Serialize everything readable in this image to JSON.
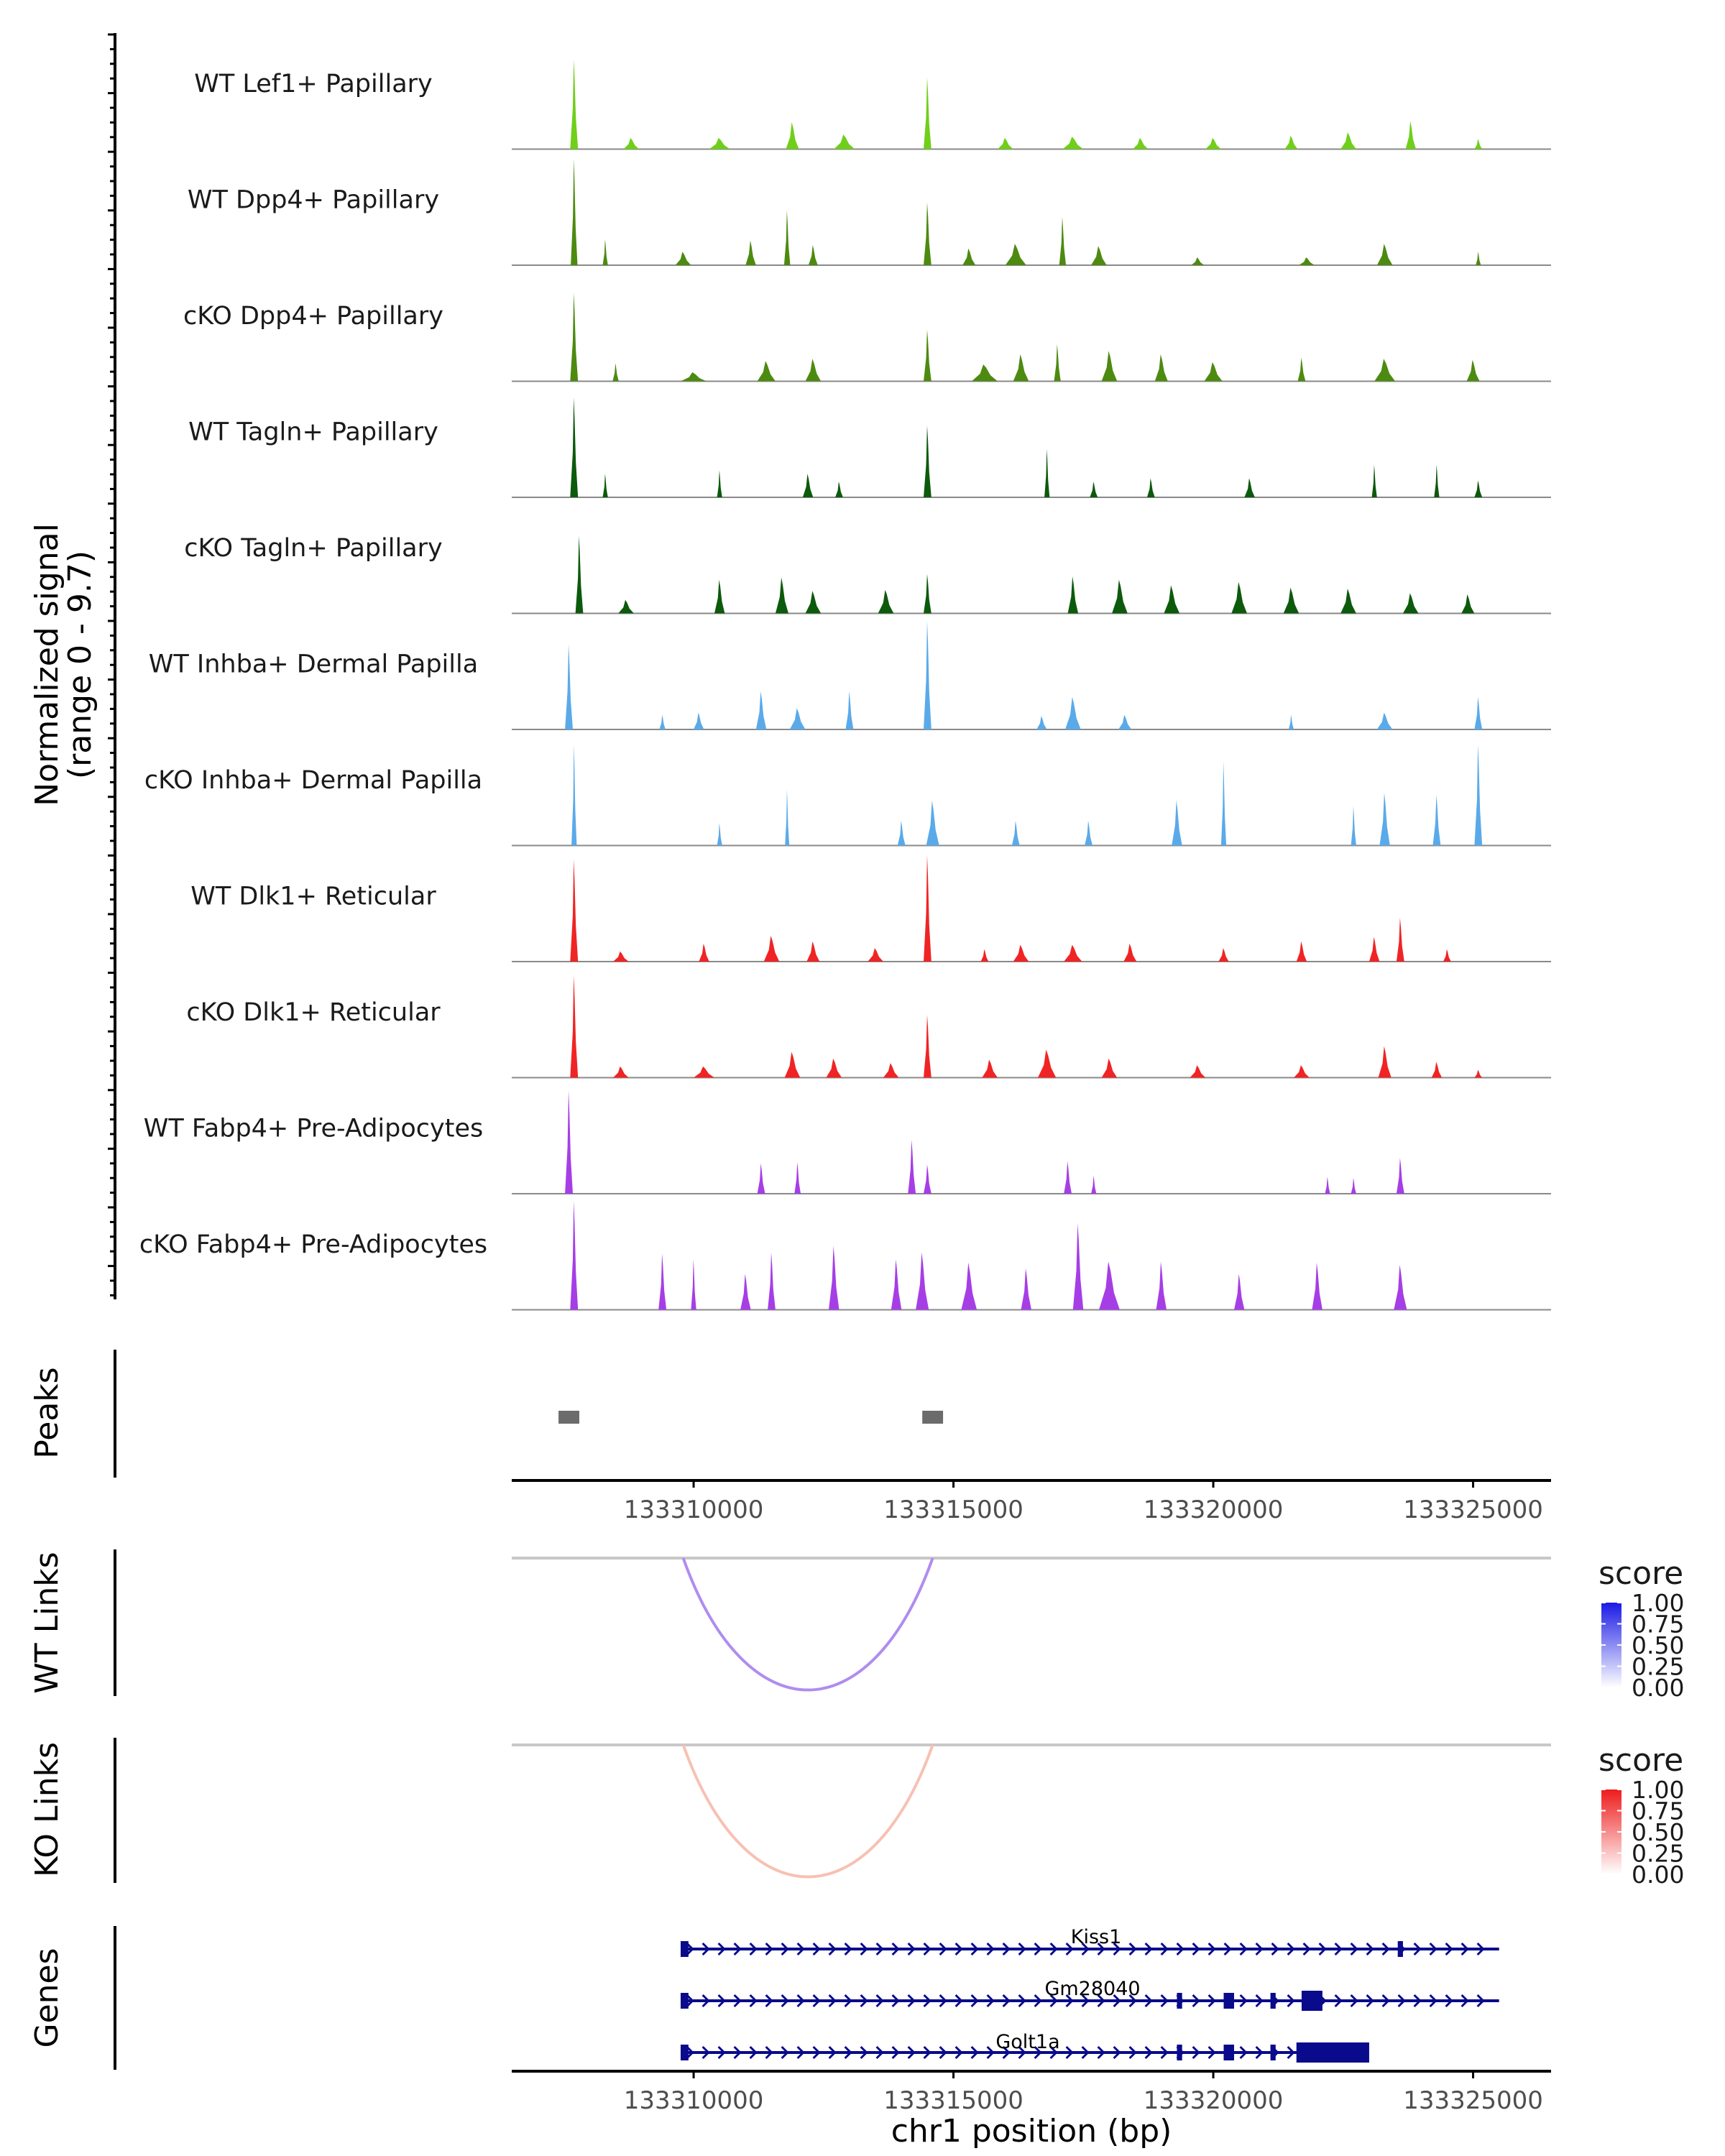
{
  "chart_data": {
    "type": "area",
    "title": "",
    "region": "chr1",
    "ylabel_line1": "Normalized signal",
    "ylabel_line2": "(range 0 - 9.7)",
    "y_range": [
      0,
      9.7
    ],
    "x_range": [
      133306500,
      133326500
    ],
    "xlabel": "chr1 position (bp)",
    "x_ticks": [
      133310000,
      133315000,
      133320000,
      133325000
    ],
    "x_tick_labels": [
      "133310000",
      "133315000",
      "133320000",
      "133325000"
    ],
    "tracks": [
      {
        "name": "WT Lef1+ Papillary",
        "color": "#6fcf1a",
        "peaks": [
          [
            133307700,
            8.0,
            150
          ],
          [
            133308800,
            1.0,
            300
          ],
          [
            133310500,
            1.0,
            400
          ],
          [
            133311900,
            2.4,
            250
          ],
          [
            133312900,
            1.3,
            400
          ],
          [
            133314500,
            6.4,
            150
          ],
          [
            133316000,
            1.0,
            300
          ],
          [
            133317300,
            1.1,
            400
          ],
          [
            133318600,
            1.0,
            300
          ],
          [
            133320000,
            1.0,
            300
          ],
          [
            133321500,
            1.2,
            250
          ],
          [
            133322600,
            1.5,
            300
          ],
          [
            133323800,
            2.5,
            200
          ],
          [
            133325100,
            0.9,
            150
          ]
        ]
      },
      {
        "name": "WT Dpp4+ Papillary",
        "color": "#4d8a10",
        "peaks": [
          [
            133307700,
            9.5,
            130
          ],
          [
            133308300,
            2.3,
            100
          ],
          [
            133309800,
            1.2,
            300
          ],
          [
            133311100,
            2.2,
            200
          ],
          [
            133311800,
            4.9,
            120
          ],
          [
            133312300,
            1.8,
            180
          ],
          [
            133314500,
            5.6,
            150
          ],
          [
            133315300,
            1.5,
            250
          ],
          [
            133316200,
            1.9,
            400
          ],
          [
            133317100,
            4.3,
            130
          ],
          [
            133317800,
            1.7,
            300
          ],
          [
            133319700,
            0.7,
            250
          ],
          [
            133321800,
            0.7,
            300
          ],
          [
            133323300,
            1.9,
            300
          ],
          [
            133325100,
            1.2,
            100
          ]
        ]
      },
      {
        "name": "cKO Dpp4+ Papillary",
        "color": "#4d8a10",
        "peaks": [
          [
            133307700,
            7.9,
            150
          ],
          [
            133308500,
            1.6,
            120
          ],
          [
            133310000,
            0.8,
            500
          ],
          [
            133311400,
            1.8,
            350
          ],
          [
            133312300,
            2.0,
            300
          ],
          [
            133314500,
            4.6,
            150
          ],
          [
            133315600,
            1.5,
            500
          ],
          [
            133316300,
            2.4,
            300
          ],
          [
            133317000,
            3.3,
            130
          ],
          [
            133318000,
            2.7,
            300
          ],
          [
            133319000,
            2.4,
            250
          ],
          [
            133320000,
            1.7,
            350
          ],
          [
            133321700,
            2.1,
            150
          ],
          [
            133323300,
            2.0,
            400
          ],
          [
            133325000,
            1.9,
            250
          ]
        ]
      },
      {
        "name": "WT Tagln+ Papillary",
        "color": "#0c5a0c",
        "peaks": [
          [
            133307700,
            8.9,
            150
          ],
          [
            133308300,
            2.1,
            100
          ],
          [
            133310500,
            2.4,
            100
          ],
          [
            133312200,
            2.1,
            200
          ],
          [
            133312800,
            1.4,
            150
          ],
          [
            133314500,
            6.4,
            150
          ],
          [
            133316800,
            4.3,
            100
          ],
          [
            133317700,
            1.4,
            150
          ],
          [
            133318800,
            1.7,
            150
          ],
          [
            133320700,
            1.7,
            200
          ],
          [
            133323100,
            2.9,
            100
          ],
          [
            133324300,
            2.9,
            100
          ],
          [
            133325100,
            1.5,
            150
          ]
        ]
      },
      {
        "name": "cKO Tagln+ Papillary",
        "color": "#0c5a0c",
        "peaks": [
          [
            133307800,
            6.9,
            150
          ],
          [
            133308700,
            1.2,
            300
          ],
          [
            133310500,
            3.0,
            200
          ],
          [
            133311700,
            3.2,
            250
          ],
          [
            133312300,
            2.0,
            300
          ],
          [
            133313700,
            2.1,
            300
          ],
          [
            133314500,
            3.5,
            150
          ],
          [
            133317300,
            3.3,
            200
          ],
          [
            133318200,
            3.0,
            300
          ],
          [
            133319200,
            2.5,
            300
          ],
          [
            133320500,
            2.8,
            300
          ],
          [
            133321500,
            2.3,
            300
          ],
          [
            133322600,
            2.2,
            300
          ],
          [
            133323800,
            1.8,
            300
          ],
          [
            133324900,
            1.7,
            250
          ]
        ]
      },
      {
        "name": "WT Inhba+ Dermal Papilla",
        "color": "#5aaaea",
        "peaks": [
          [
            133307600,
            7.6,
            150
          ],
          [
            133309400,
            1.3,
            120
          ],
          [
            133310100,
            1.5,
            200
          ],
          [
            133311300,
            3.4,
            200
          ],
          [
            133312000,
            1.9,
            300
          ],
          [
            133313000,
            3.4,
            150
          ],
          [
            133314500,
            9.7,
            150
          ],
          [
            133316700,
            1.2,
            200
          ],
          [
            133317300,
            2.9,
            300
          ],
          [
            133318300,
            1.3,
            250
          ],
          [
            133321500,
            1.3,
            100
          ],
          [
            133323300,
            1.5,
            300
          ],
          [
            133325100,
            2.9,
            150
          ]
        ]
      },
      {
        "name": "cKO Inhba+ Dermal Papilla",
        "color": "#5aaaea",
        "peaks": [
          [
            133307700,
            9.0,
            100
          ],
          [
            133310500,
            2.0,
            100
          ],
          [
            133311800,
            5.0,
            80
          ],
          [
            133314000,
            2.2,
            150
          ],
          [
            133314600,
            4.0,
            250
          ],
          [
            133316200,
            2.2,
            150
          ],
          [
            133317600,
            2.2,
            150
          ],
          [
            133319300,
            4.0,
            200
          ],
          [
            133320200,
            7.5,
            100
          ],
          [
            133322700,
            3.5,
            100
          ],
          [
            133323300,
            4.7,
            200
          ],
          [
            133324300,
            4.5,
            150
          ],
          [
            133325100,
            9.0,
            150
          ]
        ]
      },
      {
        "name": "WT Dlk1+ Reticular",
        "color": "#f02424",
        "peaks": [
          [
            133307700,
            9.1,
            150
          ],
          [
            133308600,
            0.9,
            300
          ],
          [
            133310200,
            1.6,
            200
          ],
          [
            133311500,
            2.3,
            300
          ],
          [
            133312300,
            1.8,
            250
          ],
          [
            133313500,
            1.2,
            300
          ],
          [
            133314500,
            9.5,
            150
          ],
          [
            133315600,
            1.1,
            150
          ],
          [
            133316300,
            1.5,
            300
          ],
          [
            133317300,
            1.5,
            350
          ],
          [
            133318400,
            1.6,
            250
          ],
          [
            133320200,
            1.2,
            200
          ],
          [
            133321700,
            1.8,
            200
          ],
          [
            133323100,
            2.2,
            200
          ],
          [
            133323600,
            3.9,
            150
          ],
          [
            133324500,
            1.1,
            150
          ]
        ]
      },
      {
        "name": "cKO Dlk1+ Reticular",
        "color": "#f02424",
        "peaks": [
          [
            133307700,
            9.1,
            150
          ],
          [
            133308600,
            1.0,
            300
          ],
          [
            133310200,
            1.0,
            400
          ],
          [
            133311900,
            2.3,
            300
          ],
          [
            133312700,
            1.7,
            300
          ],
          [
            133313800,
            1.3,
            300
          ],
          [
            133314500,
            5.6,
            150
          ],
          [
            133315700,
            1.6,
            300
          ],
          [
            133316800,
            2.5,
            350
          ],
          [
            133318000,
            1.7,
            300
          ],
          [
            133319700,
            1.1,
            300
          ],
          [
            133321700,
            1.1,
            300
          ],
          [
            133323300,
            2.8,
            250
          ],
          [
            133324300,
            1.4,
            200
          ],
          [
            133325100,
            0.7,
            150
          ]
        ]
      },
      {
        "name": "WT Fabp4+ Pre-Adipocytes",
        "color": "#a63ee6",
        "peaks": [
          [
            133307600,
            9.2,
            150
          ],
          [
            133311300,
            2.7,
            150
          ],
          [
            133312000,
            2.8,
            120
          ],
          [
            133314200,
            4.8,
            150
          ],
          [
            133314500,
            2.6,
            150
          ],
          [
            133317200,
            2.9,
            150
          ],
          [
            133317700,
            1.6,
            100
          ],
          [
            133322200,
            1.5,
            100
          ],
          [
            133322700,
            1.4,
            100
          ],
          [
            133323600,
            3.2,
            150
          ]
        ]
      },
      {
        "name": "cKO Fabp4+ Pre-Adipocytes",
        "color": "#a63ee6",
        "peaks": [
          [
            133307700,
            9.7,
            150
          ],
          [
            133309400,
            5.0,
            150
          ],
          [
            133310000,
            4.5,
            100
          ],
          [
            133311000,
            3.2,
            200
          ],
          [
            133311500,
            5.1,
            150
          ],
          [
            133312700,
            5.7,
            200
          ],
          [
            133313900,
            4.5,
            200
          ],
          [
            133314400,
            5.1,
            250
          ],
          [
            133315300,
            4.2,
            300
          ],
          [
            133316400,
            3.7,
            200
          ],
          [
            133317400,
            7.7,
            200
          ],
          [
            133318000,
            4.3,
            400
          ],
          [
            133319000,
            4.3,
            200
          ],
          [
            133320500,
            3.2,
            200
          ],
          [
            133322000,
            4.2,
            200
          ],
          [
            133323600,
            4.0,
            250
          ]
        ]
      }
    ],
    "peaks_track": {
      "label": "Peaks",
      "color": "#6b6b6b",
      "regions": [
        [
          133307400,
          133307800
        ],
        [
          133314400,
          133314800
        ]
      ]
    },
    "links_tracks": [
      {
        "label": "WT Links",
        "arc": [
          133309800,
          133314600
        ],
        "score": 0.5,
        "arc_color": "#b08cef",
        "legend": {
          "title": "score",
          "ticks": [
            "1.00",
            "0.75",
            "0.50",
            "0.25",
            "0.00"
          ],
          "color_low": "#ffffff",
          "color_high": "#1a1ae6"
        }
      },
      {
        "label": "KO Links",
        "arc": [
          133309800,
          133314600
        ],
        "score": 0.25,
        "arc_color": "#f7c1b3",
        "legend": {
          "title": "score",
          "ticks": [
            "1.00",
            "0.75",
            "0.50",
            "0.25",
            "0.00"
          ],
          "color_low": "#ffffff",
          "color_high": "#ee1c1c"
        }
      }
    ],
    "genes_track": {
      "label": "Genes",
      "color": "#0a0a8c",
      "genes": [
        {
          "name": "Kiss1",
          "start": 133309800,
          "end": 133325500,
          "exons": [
            [
              133309750,
              133309900
            ],
            [
              133323550,
              133323650
            ]
          ]
        },
        {
          "name": "Gm28040",
          "start": 133309800,
          "end": 133325500,
          "exons": [
            [
              133309750,
              133309900
            ],
            [
              133319300,
              133319400
            ],
            [
              133320200,
              133320400
            ],
            [
              133321100,
              133321200
            ],
            [
              133321700,
              133322100
            ]
          ]
        },
        {
          "name": "Golt1a",
          "start": 133309800,
          "end": 133322600,
          "exons": [
            [
              133309750,
              133309900
            ],
            [
              133319300,
              133319400
            ],
            [
              133320200,
              133320400
            ],
            [
              133321100,
              133321200
            ],
            [
              133321600,
              133323000
            ]
          ]
        }
      ]
    }
  }
}
